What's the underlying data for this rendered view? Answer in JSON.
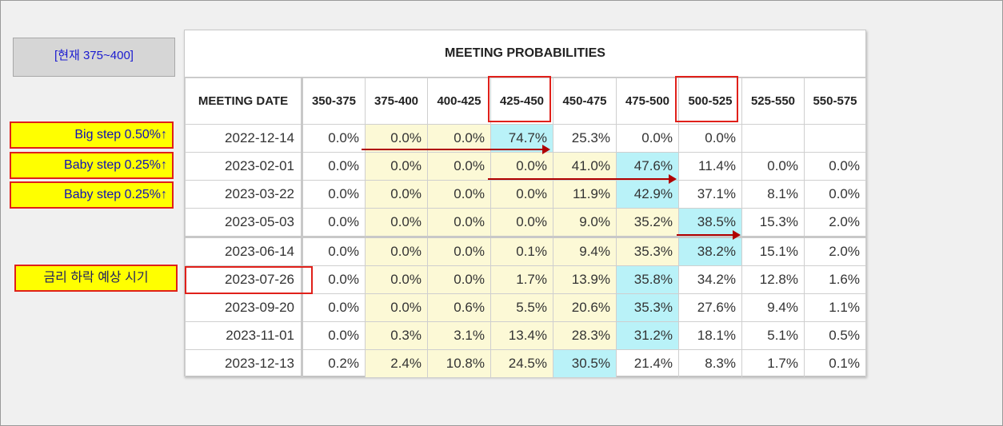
{
  "current_rate_label": "[현재 375~400]",
  "notes": {
    "big_step": "Big step 0.50%↑",
    "baby_step_1": "Baby step 0.25%↑",
    "baby_step_2": "Baby step 0.25%↑",
    "rate_cut": "금리 하락 예상 시기"
  },
  "table": {
    "title": "MEETING PROBABILITIES",
    "headers": [
      "MEETING DATE",
      "350-375",
      "375-400",
      "400-425",
      "425-450",
      "450-475",
      "475-500",
      "500-525",
      "525-550",
      "550-575"
    ],
    "rows": [
      {
        "date": "2022-12-14",
        "values": [
          "0.0%",
          "0.0%",
          "0.0%",
          "74.7%",
          "25.3%",
          "0.0%",
          "0.0%",
          "",
          ""
        ]
      },
      {
        "date": "2023-02-01",
        "values": [
          "0.0%",
          "0.0%",
          "0.0%",
          "0.0%",
          "41.0%",
          "47.6%",
          "11.4%",
          "0.0%",
          "0.0%"
        ]
      },
      {
        "date": "2023-03-22",
        "values": [
          "0.0%",
          "0.0%",
          "0.0%",
          "0.0%",
          "11.9%",
          "42.9%",
          "37.1%",
          "8.1%",
          "0.0%"
        ]
      },
      {
        "date": "2023-05-03",
        "values": [
          "0.0%",
          "0.0%",
          "0.0%",
          "0.0%",
          "9.0%",
          "35.2%",
          "38.5%",
          "15.3%",
          "2.0%"
        ]
      },
      {
        "date": "2023-06-14",
        "values": [
          "0.0%",
          "0.0%",
          "0.0%",
          "0.1%",
          "9.4%",
          "35.3%",
          "38.2%",
          "15.1%",
          "2.0%"
        ]
      },
      {
        "date": "2023-07-26",
        "values": [
          "0.0%",
          "0.0%",
          "0.0%",
          "1.7%",
          "13.9%",
          "35.8%",
          "34.2%",
          "12.8%",
          "1.6%"
        ]
      },
      {
        "date": "2023-09-20",
        "values": [
          "0.0%",
          "0.0%",
          "0.6%",
          "5.5%",
          "20.6%",
          "35.3%",
          "27.6%",
          "9.4%",
          "1.1%"
        ]
      },
      {
        "date": "2023-11-01",
        "values": [
          "0.0%",
          "0.3%",
          "3.1%",
          "13.4%",
          "28.3%",
          "31.2%",
          "18.1%",
          "5.1%",
          "0.5%"
        ]
      },
      {
        "date": "2023-12-13",
        "values": [
          "0.2%",
          "2.4%",
          "10.8%",
          "24.5%",
          "30.5%",
          "21.4%",
          "8.3%",
          "1.7%",
          "0.1%"
        ]
      }
    ],
    "cell_colors": {
      "yellow": "#fcf9d6",
      "cyan": "#b9f2f8",
      "highlight_border": "#e0201a",
      "arrow": "#b00000"
    }
  }
}
